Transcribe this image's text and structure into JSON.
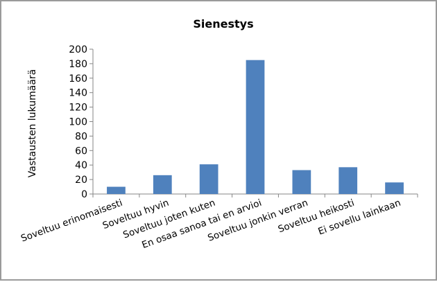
{
  "chart_data": {
    "type": "bar",
    "title": "Sienestys",
    "ylabel": "Vastausten lukumäärä",
    "xlabel": "",
    "ylim": [
      0,
      200
    ],
    "ytick_step": 20,
    "grid": false,
    "legend": "none",
    "bar_color": "#4f81bd",
    "categories": [
      "Soveltuu erinomaisesti",
      "Soveltuu hyvin",
      "Soveltuu joten kuten",
      "En osaa sanoa tai en arvioi",
      "Soveltuu jonkin verran",
      "Soveltuu heikosti",
      "Ei sovellu lainkaan"
    ],
    "values": [
      10,
      26,
      41,
      185,
      33,
      37,
      16
    ]
  }
}
